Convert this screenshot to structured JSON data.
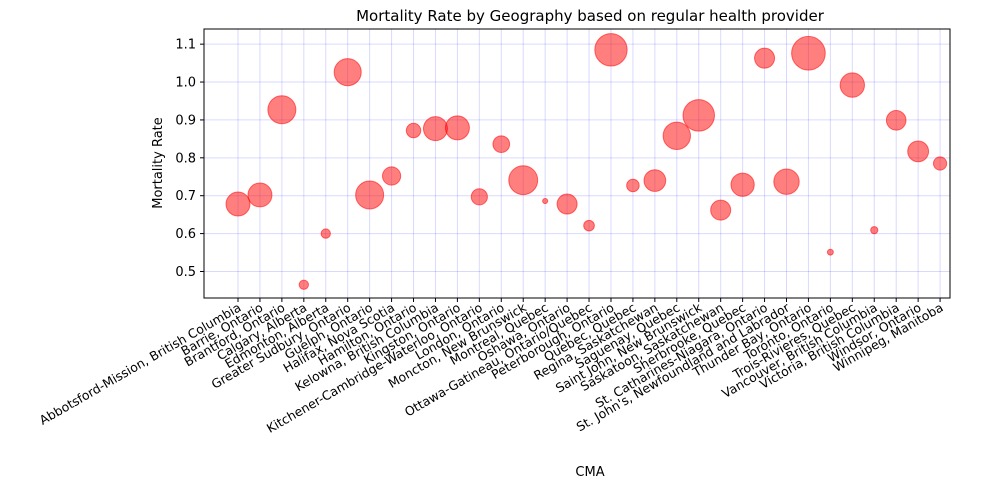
{
  "chart_data": {
    "type": "scatter",
    "title": "Mortality Rate by Geography based on regular health provider",
    "xlabel": "CMA",
    "ylabel": "Mortality Rate",
    "ylim": [
      0.43,
      1.14
    ],
    "yticks": [
      "0.5",
      "0.6",
      "0.7",
      "0.8",
      "0.9",
      "1.0",
      "1.1"
    ],
    "grid": true,
    "marker_color": "#ff0000",
    "grid_color": "#0000ff",
    "categories": [
      "Abbotsford-Mission, British Columbia",
      "Barrie, Ontario",
      "Brantford, Ontario",
      "Calgary, Alberta",
      "Edmonton, Alberta",
      "Greater Sudbury, Ontario",
      "Guelph, Ontario",
      "Halifax, Nova Scotia",
      "Hamilton, Ontario",
      "Kelowna, British Columbia",
      "Kingston, Ontario",
      "Kitchener-Cambridge-Waterloo, Ontario",
      "London, Ontario",
      "Moncton, New Brunswick",
      "Montreal, Quebec",
      "Oshawa, Ontario",
      "Ottawa-Gatineau, Ontario/Quebec",
      "Peterborough, Ontario",
      "Quebec, Quebec",
      "Regina, Saskatchewan",
      "Saguenay, Quebec",
      "Saint John, New Brunswick",
      "Saskatoon, Saskatchewan",
      "Sherbrooke, Quebec",
      "St. Catharines-Niagara, Ontario",
      "St. John's, Newfoundland and Labrador",
      "Thunder Bay, Ontario",
      "Toronto, Ontario",
      "Trois-Rivieres, Quebec",
      "Vancouver, British Columbia",
      "Victoria, British Columbia",
      "Windsor, Ontario",
      "Winnipeg, Manitoba"
    ],
    "values": [
      0.678,
      0.702,
      0.927,
      0.465,
      0.6,
      1.026,
      0.702,
      0.752,
      0.872,
      0.877,
      0.879,
      0.697,
      0.836,
      0.741,
      0.686,
      0.678,
      0.621,
      1.085,
      0.727,
      0.74,
      0.858,
      0.912,
      0.662,
      0.729,
      1.063,
      0.737,
      1.076,
      0.551,
      0.992,
      0.609,
      0.899,
      0.817,
      0.785
    ],
    "sizes": [
      330,
      330,
      450,
      50,
      50,
      420,
      450,
      190,
      120,
      330,
      330,
      150,
      160,
      480,
      15,
      230,
      65,
      600,
      90,
      270,
      430,
      570,
      230,
      310,
      230,
      370,
      650,
      20,
      340,
      30,
      220,
      250,
      100
    ]
  }
}
